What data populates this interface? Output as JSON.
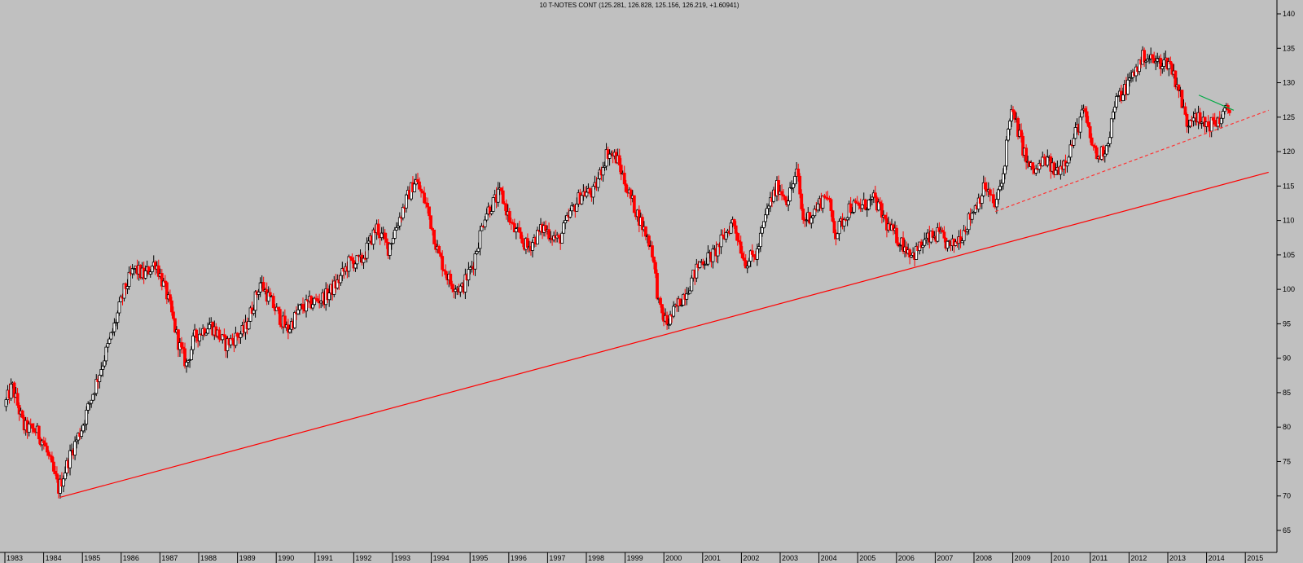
{
  "chart_data": {
    "type": "candlestick",
    "title": "10 T-NOTES CONT (125.281, 126.828, 125.156, 126.219, +1.60941)",
    "up_color": "#ffffff",
    "down_color": "#ff0000",
    "background": "#c0c0c0",
    "grid": false,
    "ylim": [
      63,
      141
    ],
    "xlim": [
      1983.0,
      2015.6
    ],
    "yticks": [
      65,
      70,
      75,
      80,
      85,
      90,
      95,
      100,
      105,
      110,
      115,
      120,
      125,
      130,
      135,
      140
    ],
    "xticks": [
      "1983",
      "1984",
      "1985",
      "1986",
      "1987",
      "1988",
      "1989",
      "1990",
      "1991",
      "1992",
      "1993",
      "1994",
      "1995",
      "1996",
      "1997",
      "1998",
      "1999",
      "2000",
      "2001",
      "2002",
      "2003",
      "2004",
      "2005",
      "2006",
      "2007",
      "2008",
      "2009",
      "2010",
      "2011",
      "2012",
      "2013",
      "2014",
      "2015"
    ],
    "price_anchors": [
      [
        1983.0,
        83
      ],
      [
        1983.2,
        86
      ],
      [
        1983.5,
        80
      ],
      [
        1983.8,
        79.5
      ],
      [
        1984.0,
        78
      ],
      [
        1984.4,
        71
      ],
      [
        1984.7,
        76
      ],
      [
        1985.0,
        80
      ],
      [
        1985.4,
        87
      ],
      [
        1985.8,
        94
      ],
      [
        1986.1,
        100
      ],
      [
        1986.35,
        103
      ],
      [
        1986.6,
        102
      ],
      [
        1986.9,
        104
      ],
      [
        1987.2,
        99
      ],
      [
        1987.5,
        92
      ],
      [
        1987.7,
        89
      ],
      [
        1987.9,
        93
      ],
      [
        1988.3,
        95
      ],
      [
        1988.7,
        92
      ],
      [
        1989.2,
        94
      ],
      [
        1989.6,
        101
      ],
      [
        1989.9,
        98
      ],
      [
        1990.3,
        94
      ],
      [
        1990.6,
        97
      ],
      [
        1990.9,
        98
      ],
      [
        1991.3,
        99
      ],
      [
        1991.6,
        101
      ],
      [
        1991.9,
        104
      ],
      [
        1992.2,
        104
      ],
      [
        1992.6,
        109
      ],
      [
        1992.9,
        106
      ],
      [
        1993.3,
        112
      ],
      [
        1993.6,
        116
      ],
      [
        1993.9,
        112
      ],
      [
        1994.2,
        105
      ],
      [
        1994.5,
        101
      ],
      [
        1994.8,
        100
      ],
      [
        1995.1,
        104
      ],
      [
        1995.4,
        111
      ],
      [
        1995.8,
        114
      ],
      [
        1996.1,
        109
      ],
      [
        1996.5,
        106
      ],
      [
        1996.9,
        109
      ],
      [
        1997.3,
        107
      ],
      [
        1997.6,
        111
      ],
      [
        1997.9,
        114
      ],
      [
        1998.2,
        114
      ],
      [
        1998.55,
        120
      ],
      [
        1998.8,
        119
      ],
      [
        1999.1,
        114
      ],
      [
        1999.4,
        110
      ],
      [
        1999.7,
        106
      ],
      [
        1999.9,
        97
      ],
      [
        2000.1,
        95
      ],
      [
        2000.4,
        98
      ],
      [
        2000.7,
        101
      ],
      [
        2000.95,
        104
      ],
      [
        2001.3,
        105
      ],
      [
        2001.6,
        108
      ],
      [
        2001.8,
        110
      ],
      [
        2002.1,
        104
      ],
      [
        2002.4,
        105
      ],
      [
        2002.7,
        112
      ],
      [
        2002.95,
        115
      ],
      [
        2003.2,
        113
      ],
      [
        2003.45,
        117
      ],
      [
        2003.6,
        110
      ],
      [
        2003.85,
        111
      ],
      [
        2004.2,
        114
      ],
      [
        2004.45,
        108
      ],
      [
        2004.8,
        112
      ],
      [
        2005.1,
        112
      ],
      [
        2005.45,
        113
      ],
      [
        2005.8,
        109
      ],
      [
        2006.1,
        107
      ],
      [
        2006.45,
        105
      ],
      [
        2006.75,
        107
      ],
      [
        2007.1,
        108
      ],
      [
        2007.4,
        106
      ],
      [
        2007.7,
        108
      ],
      [
        2007.95,
        111
      ],
      [
        2008.3,
        115
      ],
      [
        2008.55,
        112
      ],
      [
        2008.75,
        116
      ],
      [
        2008.95,
        126
      ],
      [
        2009.1,
        124
      ],
      [
        2009.4,
        118
      ],
      [
        2009.6,
        117
      ],
      [
        2009.85,
        119
      ],
      [
        2010.1,
        117
      ],
      [
        2010.4,
        119
      ],
      [
        2010.65,
        123
      ],
      [
        2010.85,
        126
      ],
      [
        2011.0,
        122
      ],
      [
        2011.2,
        119
      ],
      [
        2011.45,
        121
      ],
      [
        2011.65,
        127
      ],
      [
        2011.9,
        129
      ],
      [
        2012.1,
        131
      ],
      [
        2012.4,
        134
      ],
      [
        2012.7,
        133
      ],
      [
        2012.9,
        133
      ],
      [
        2013.05,
        133
      ],
      [
        2013.3,
        129
      ],
      [
        2013.5,
        124
      ],
      [
        2013.7,
        126
      ],
      [
        2013.85,
        124
      ],
      [
        2014.05,
        124
      ],
      [
        2014.2,
        124
      ],
      [
        2014.4,
        125
      ],
      [
        2014.55,
        126
      ]
    ],
    "trendlines": [
      {
        "style": "solid",
        "color": "#ff0000",
        "from": [
          1984.42,
          69.8
        ],
        "to": [
          2015.6,
          117.0
        ]
      },
      {
        "style": "dashed",
        "color": "#ff3333",
        "from": [
          2008.55,
          111.3
        ],
        "to": [
          2015.6,
          126.0
        ]
      },
      {
        "style": "solid",
        "color": "#00aa44",
        "from": [
          2013.8,
          128.2
        ],
        "to": [
          2014.7,
          126.0
        ]
      }
    ]
  }
}
